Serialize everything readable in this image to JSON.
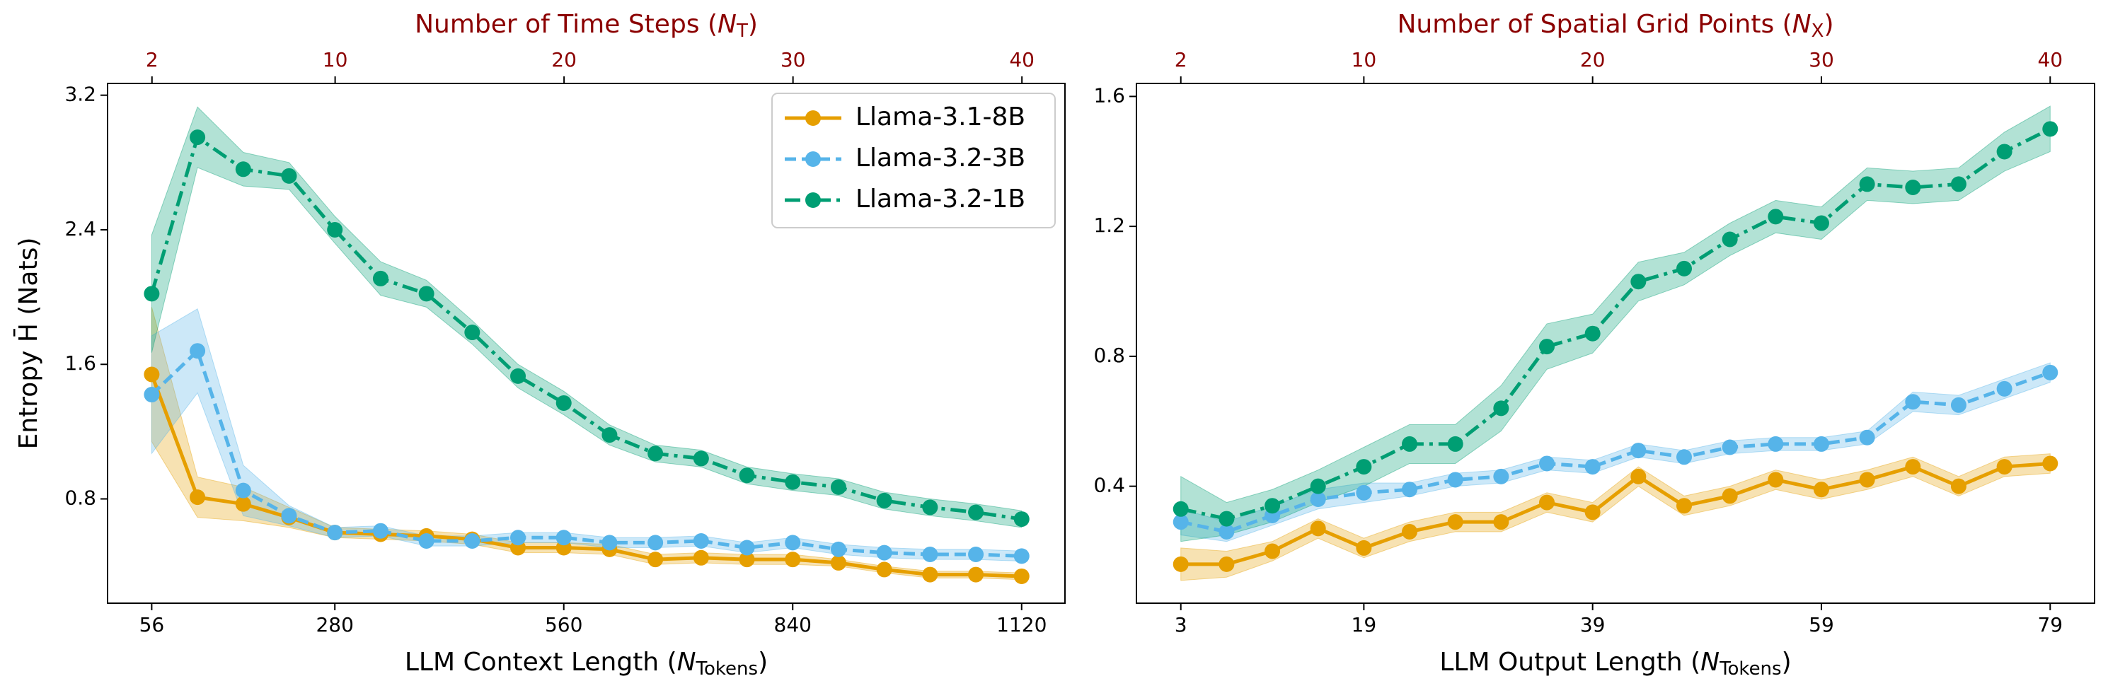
{
  "chart_data": [
    {
      "type": "line",
      "xlabel": [
        "LLM Context Length (",
        "N",
        "Tokens",
        ")"
      ],
      "x2label": [
        "Number of Time Steps (",
        "N",
        "T",
        ")"
      ],
      "ylabel": "Entropy H̄ (Nats)",
      "x": [
        56,
        112,
        168,
        224,
        280,
        336,
        392,
        448,
        504,
        560,
        616,
        672,
        728,
        784,
        840,
        896,
        952,
        1008,
        1064,
        1120
      ],
      "xlim": [
        2,
        1173
      ],
      "xticks": [
        56,
        280,
        560,
        840,
        1120
      ],
      "x2lim": [
        0.06,
        41.88
      ],
      "x2ticks": [
        2,
        10,
        20,
        30,
        40
      ],
      "ylim": [
        0.18,
        3.27
      ],
      "yticks": [
        0.8,
        1.6,
        2.4,
        3.2
      ],
      "legend": "upper right",
      "series": [
        {
          "name": "Llama-3.1-8B",
          "color": "#e69f00",
          "linestyle": "solid",
          "values": [
            1.54,
            0.81,
            0.77,
            0.69,
            0.6,
            0.59,
            0.58,
            0.56,
            0.51,
            0.51,
            0.5,
            0.44,
            0.45,
            0.44,
            0.44,
            0.42,
            0.38,
            0.35,
            0.35,
            0.34
          ],
          "errors": [
            0.4,
            0.12,
            0.1,
            0.06,
            0.03,
            0.03,
            0.03,
            0.03,
            0.03,
            0.03,
            0.03,
            0.03,
            0.03,
            0.03,
            0.03,
            0.02,
            0.02,
            0.02,
            0.02,
            0.02
          ]
        },
        {
          "name": "Llama-3.2-3B",
          "color": "#56b4e9",
          "linestyle": "dashed",
          "values": [
            1.42,
            1.68,
            0.85,
            0.7,
            0.6,
            0.61,
            0.55,
            0.55,
            0.57,
            0.57,
            0.54,
            0.54,
            0.55,
            0.51,
            0.54,
            0.5,
            0.48,
            0.47,
            0.47,
            0.46
          ],
          "errors": [
            0.35,
            0.25,
            0.15,
            0.06,
            0.03,
            0.03,
            0.03,
            0.03,
            0.03,
            0.03,
            0.03,
            0.03,
            0.03,
            0.03,
            0.03,
            0.03,
            0.03,
            0.03,
            0.03,
            0.03
          ]
        },
        {
          "name": "Llama-3.2-1B",
          "color": "#009e73",
          "linestyle": "dashdot",
          "values": [
            2.02,
            2.95,
            2.76,
            2.72,
            2.4,
            2.11,
            2.02,
            1.79,
            1.53,
            1.37,
            1.18,
            1.07,
            1.04,
            0.94,
            0.9,
            0.87,
            0.79,
            0.75,
            0.72,
            0.68
          ],
          "errors": [
            0.35,
            0.18,
            0.1,
            0.08,
            0.08,
            0.1,
            0.08,
            0.07,
            0.07,
            0.07,
            0.06,
            0.05,
            0.05,
            0.05,
            0.05,
            0.05,
            0.05,
            0.05,
            0.05,
            0.05
          ]
        }
      ]
    },
    {
      "type": "line",
      "xlabel": [
        "LLM Output Length (",
        "N",
        "Tokens",
        ")"
      ],
      "x2label": [
        "Number of Spatial Grid Points (",
        "N",
        "X",
        ")"
      ],
      "x": [
        3,
        7,
        11,
        15,
        19,
        23,
        27,
        31,
        35,
        39,
        43,
        47,
        51,
        55,
        59,
        63,
        67,
        71,
        75,
        79
      ],
      "xlim": [
        -0.88,
        82.88
      ],
      "xticks": [
        3,
        19,
        39,
        59,
        79
      ],
      "x2lim": [
        0.06,
        41.94
      ],
      "x2ticks": [
        2,
        10,
        20,
        30,
        40
      ],
      "ylim": [
        0.04,
        1.64
      ],
      "yticks": [
        0.4,
        0.8,
        1.2,
        1.6
      ],
      "series": [
        {
          "name": "Llama-3.1-8B",
          "color": "#e69f00",
          "linestyle": "solid",
          "values": [
            0.16,
            0.16,
            0.2,
            0.27,
            0.21,
            0.26,
            0.29,
            0.29,
            0.35,
            0.32,
            0.43,
            0.34,
            0.37,
            0.42,
            0.39,
            0.42,
            0.46,
            0.4,
            0.46,
            0.47
          ],
          "errors": [
            0.05,
            0.04,
            0.03,
            0.03,
            0.03,
            0.03,
            0.03,
            0.03,
            0.03,
            0.03,
            0.03,
            0.03,
            0.03,
            0.03,
            0.03,
            0.03,
            0.03,
            0.03,
            0.03,
            0.03
          ]
        },
        {
          "name": "Llama-3.2-3B",
          "color": "#56b4e9",
          "linestyle": "dashed",
          "values": [
            0.29,
            0.26,
            0.31,
            0.36,
            0.38,
            0.39,
            0.42,
            0.43,
            0.47,
            0.46,
            0.51,
            0.49,
            0.52,
            0.53,
            0.53,
            0.55,
            0.66,
            0.65,
            0.7,
            0.75
          ],
          "errors": [
            0.04,
            0.03,
            0.03,
            0.03,
            0.03,
            0.02,
            0.02,
            0.02,
            0.02,
            0.02,
            0.02,
            0.02,
            0.02,
            0.02,
            0.02,
            0.02,
            0.03,
            0.03,
            0.03,
            0.03
          ]
        },
        {
          "name": "Llama-3.2-1B",
          "color": "#009e73",
          "linestyle": "dashdot",
          "values": [
            0.33,
            0.3,
            0.34,
            0.4,
            0.46,
            0.53,
            0.53,
            0.64,
            0.83,
            0.87,
            1.03,
            1.07,
            1.16,
            1.23,
            1.21,
            1.33,
            1.32,
            1.33,
            1.43,
            1.5
          ],
          "errors": [
            0.1,
            0.05,
            0.05,
            0.05,
            0.06,
            0.06,
            0.06,
            0.07,
            0.07,
            0.06,
            0.06,
            0.05,
            0.05,
            0.05,
            0.05,
            0.05,
            0.05,
            0.05,
            0.06,
            0.07
          ]
        }
      ]
    }
  ]
}
